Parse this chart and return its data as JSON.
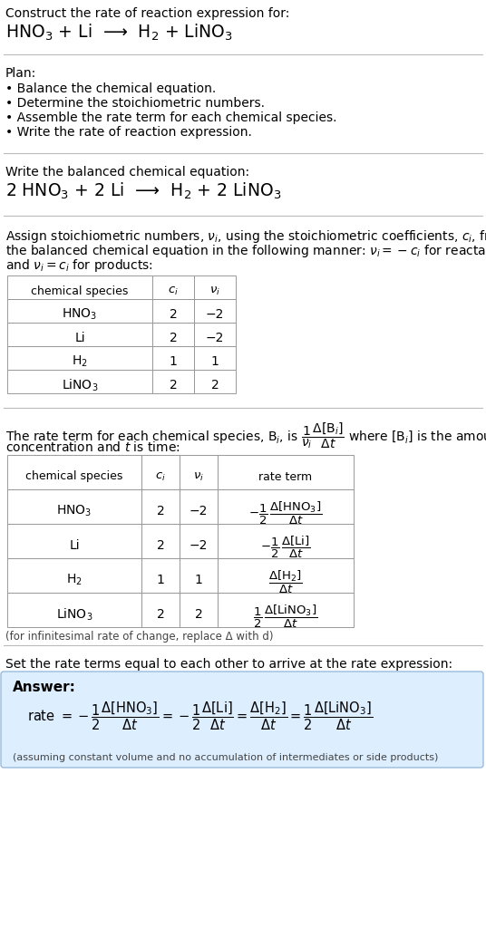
{
  "title_line1": "Construct the rate of reaction expression for:",
  "title_line2": "HNO$_3$ + Li  ⟶  H$_2$ + LiNO$_3$",
  "plan_header": "Plan:",
  "plan_items": [
    "• Balance the chemical equation.",
    "• Determine the stoichiometric numbers.",
    "• Assemble the rate term for each chemical species.",
    "• Write the rate of reaction expression."
  ],
  "balanced_header": "Write the balanced chemical equation:",
  "balanced_eq": "2 HNO$_3$ + 2 Li  ⟶  H$_2$ + 2 LiNO$_3$",
  "table1_headers": [
    "chemical species",
    "$c_i$",
    "$\\nu_i$"
  ],
  "table1_rows": [
    [
      "HNO$_3$",
      "2",
      "−2"
    ],
    [
      "Li",
      "2",
      "−2"
    ],
    [
      "H$_2$",
      "1",
      "1"
    ],
    [
      "LiNO$_3$",
      "2",
      "2"
    ]
  ],
  "table2_headers": [
    "chemical species",
    "$c_i$",
    "$\\nu_i$",
    "rate term"
  ],
  "table2_rows": [
    [
      "HNO$_3$",
      "2",
      "−2",
      "$-\\dfrac{1}{2}\\,\\dfrac{\\Delta[\\mathrm{HNO_3}]}{\\Delta t}$"
    ],
    [
      "Li",
      "2",
      "−2",
      "$-\\dfrac{1}{2}\\,\\dfrac{\\Delta[\\mathrm{Li}]}{\\Delta t}$"
    ],
    [
      "H$_2$",
      "1",
      "1",
      "$\\dfrac{\\Delta[\\mathrm{H_2}]}{\\Delta t}$"
    ],
    [
      "LiNO$_3$",
      "2",
      "2",
      "$\\dfrac{1}{2}\\,\\dfrac{\\Delta[\\mathrm{LiNO_3}]}{\\Delta t}$"
    ]
  ],
  "infinitesimal_note": "(for infinitesimal rate of change, replace Δ with d)",
  "set_equal_header": "Set the rate terms equal to each other to arrive at the rate expression:",
  "answer_box_color": "#ddeeff",
  "answer_label": "Answer:",
  "answer_note": "(assuming constant volume and no accumulation of intermediates or side products)",
  "bg_color": "#ffffff",
  "table_border_color": "#999999",
  "sep_color": "#bbbbbb"
}
